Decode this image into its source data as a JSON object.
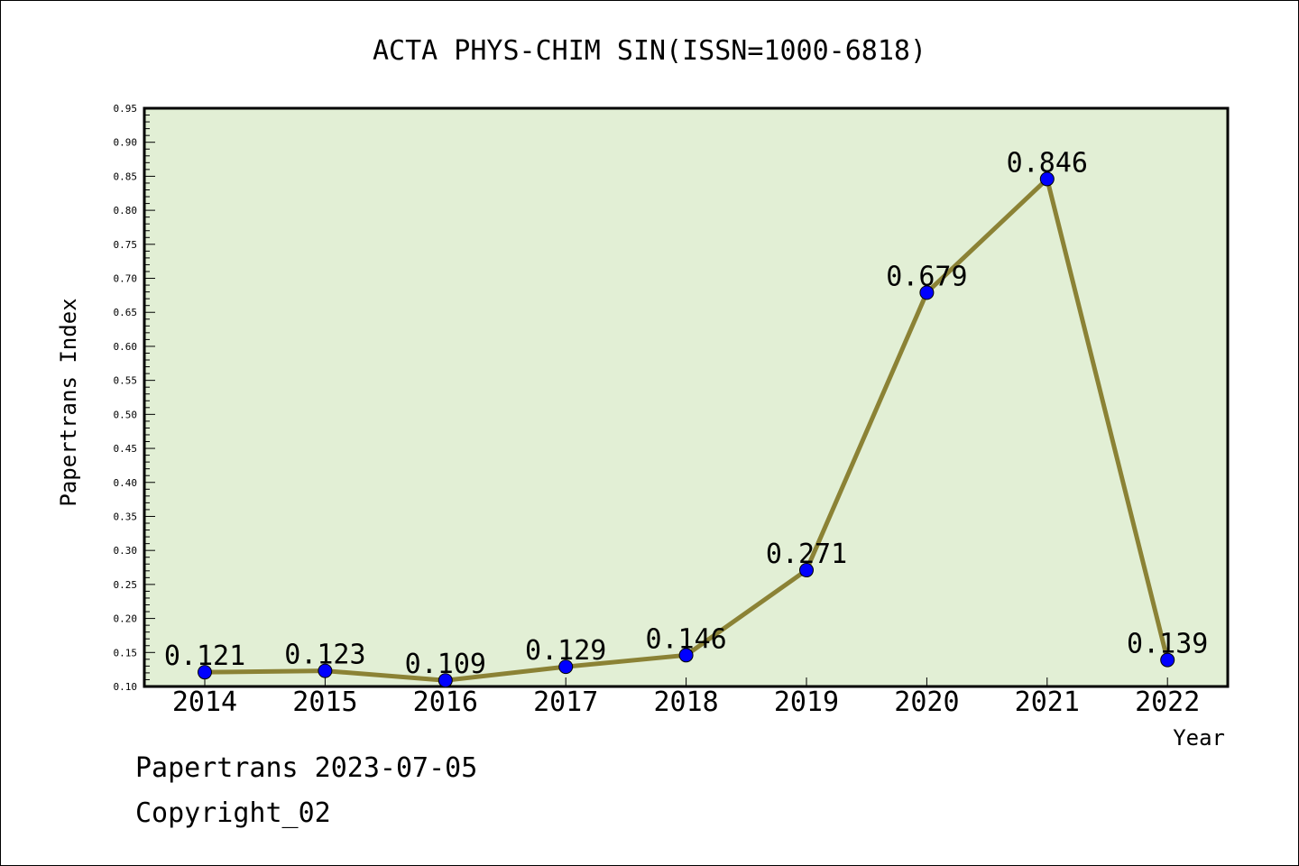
{
  "chart_data": {
    "type": "line",
    "title": "ACTA PHYS-CHIM SIN(ISSN=1000-6818)",
    "xlabel": "Year",
    "ylabel": "Papertrans Index",
    "categories": [
      "2014",
      "2015",
      "2016",
      "2017",
      "2018",
      "2019",
      "2020",
      "2021",
      "2022"
    ],
    "series": [
      {
        "values": [
          0.121,
          0.123,
          0.109,
          0.129,
          0.146,
          0.271,
          0.679,
          0.846,
          0.139
        ],
        "labels": [
          "0.121",
          "0.123",
          "0.109",
          "0.129",
          "0.146",
          "0.271",
          "0.679",
          "0.846",
          "0.139"
        ]
      }
    ],
    "ylim": [
      0.1,
      0.95
    ],
    "yticks": [
      "0.10",
      "0.15",
      "0.20",
      "0.25",
      "0.30",
      "0.35",
      "0.40",
      "0.45",
      "0.50",
      "0.55",
      "0.60",
      "0.65",
      "0.70",
      "0.75",
      "0.80",
      "0.85",
      "0.90",
      "0.95"
    ],
    "grid": false,
    "colors": {
      "plot_background": "#e2efd5",
      "line": "#8b8235",
      "marker": "#0000ff"
    }
  },
  "footer": {
    "line1": "Papertrans 2023-07-05",
    "line2": "Copyright_02"
  }
}
